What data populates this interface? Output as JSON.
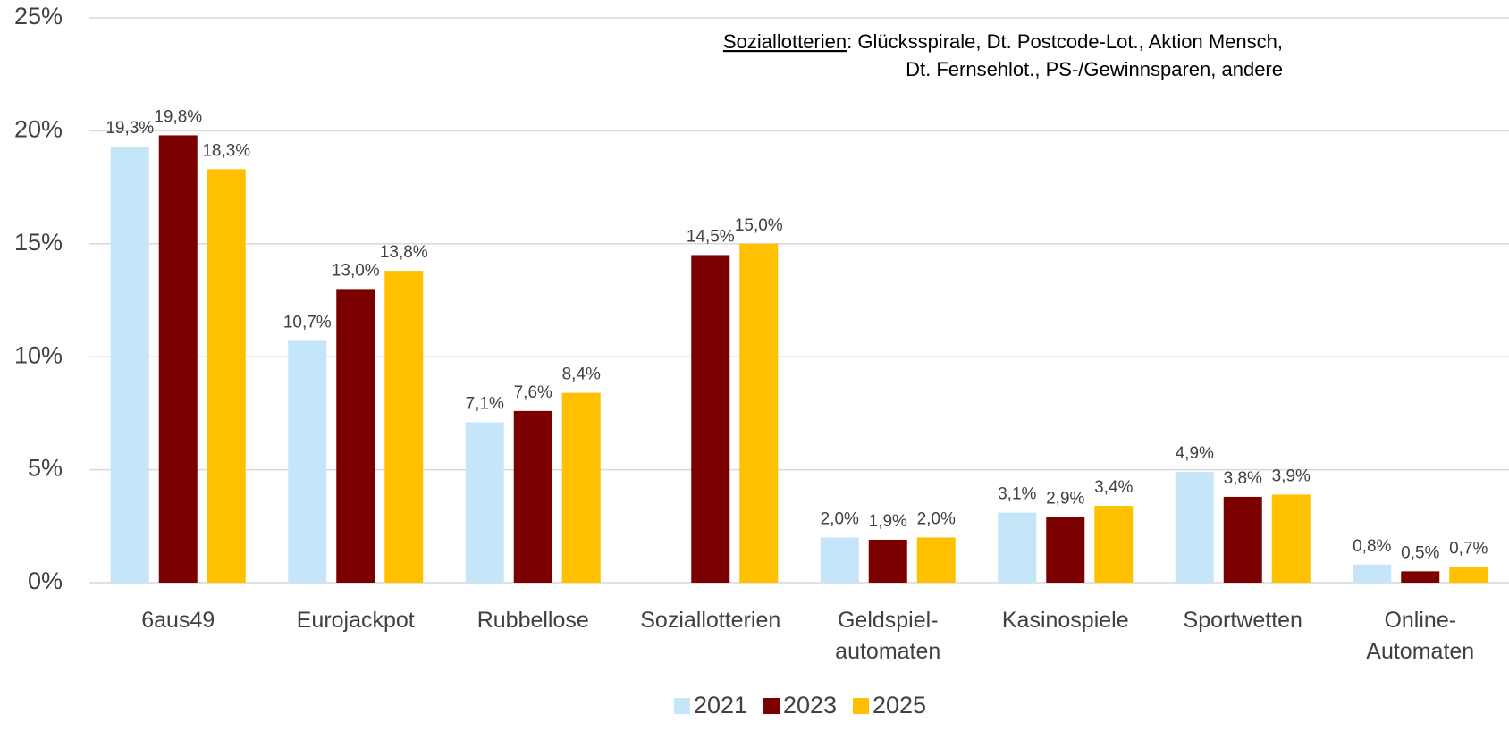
{
  "chart_data": {
    "type": "bar",
    "annotation": {
      "term": "Soziallotterien",
      "lines": [
        ": Glücksspirale, Dt. Postcode-Lot., Aktion Mensch,",
        "Dt. Fernsehlot., PS-/Gewinnsparen, andere"
      ]
    },
    "categories": [
      [
        "6aus49"
      ],
      [
        "Eurojackpot"
      ],
      [
        "Rubbellose"
      ],
      [
        "Soziallotterien"
      ],
      [
        "Geldspiel-",
        "automaten"
      ],
      [
        "Kasinospiele"
      ],
      [
        "Sportwetten"
      ],
      [
        "Online-",
        "Automaten"
      ]
    ],
    "series": [
      {
        "name": "2021",
        "color": "#c5e5f8",
        "values": [
          19.3,
          10.7,
          7.1,
          null,
          2.0,
          3.1,
          4.9,
          0.8
        ],
        "value_labels": [
          "19,3%",
          "10,7%",
          "7,1%",
          null,
          "2,0%",
          "3,1%",
          "4,9%",
          "0,8%"
        ]
      },
      {
        "name": "2023",
        "color": "#7b0000",
        "values": [
          19.8,
          13.0,
          7.6,
          14.5,
          1.9,
          2.9,
          3.8,
          0.5
        ],
        "value_labels": [
          "19,8%",
          "13,0%",
          "7,6%",
          "14,5%",
          "1,9%",
          "2,9%",
          "3,8%",
          "0,5%"
        ]
      },
      {
        "name": "2025",
        "color": "#ffc000",
        "values": [
          18.3,
          13.8,
          8.4,
          15.0,
          2.0,
          3.4,
          3.9,
          0.7
        ],
        "value_labels": [
          "18,3%",
          "13,8%",
          "8,4%",
          "15,0%",
          "2,0%",
          "3,4%",
          "3,9%",
          "0,7%"
        ]
      }
    ],
    "ylim": [
      0,
      25
    ],
    "yticks": [
      {
        "value": 0,
        "label": "0%"
      },
      {
        "value": 5,
        "label": "5%"
      },
      {
        "value": 10,
        "label": "10%"
      },
      {
        "value": 15,
        "label": "15%"
      },
      {
        "value": 20,
        "label": "20%"
      },
      {
        "value": 25,
        "label": "25%"
      }
    ],
    "grid": true,
    "legend": "bottom"
  }
}
